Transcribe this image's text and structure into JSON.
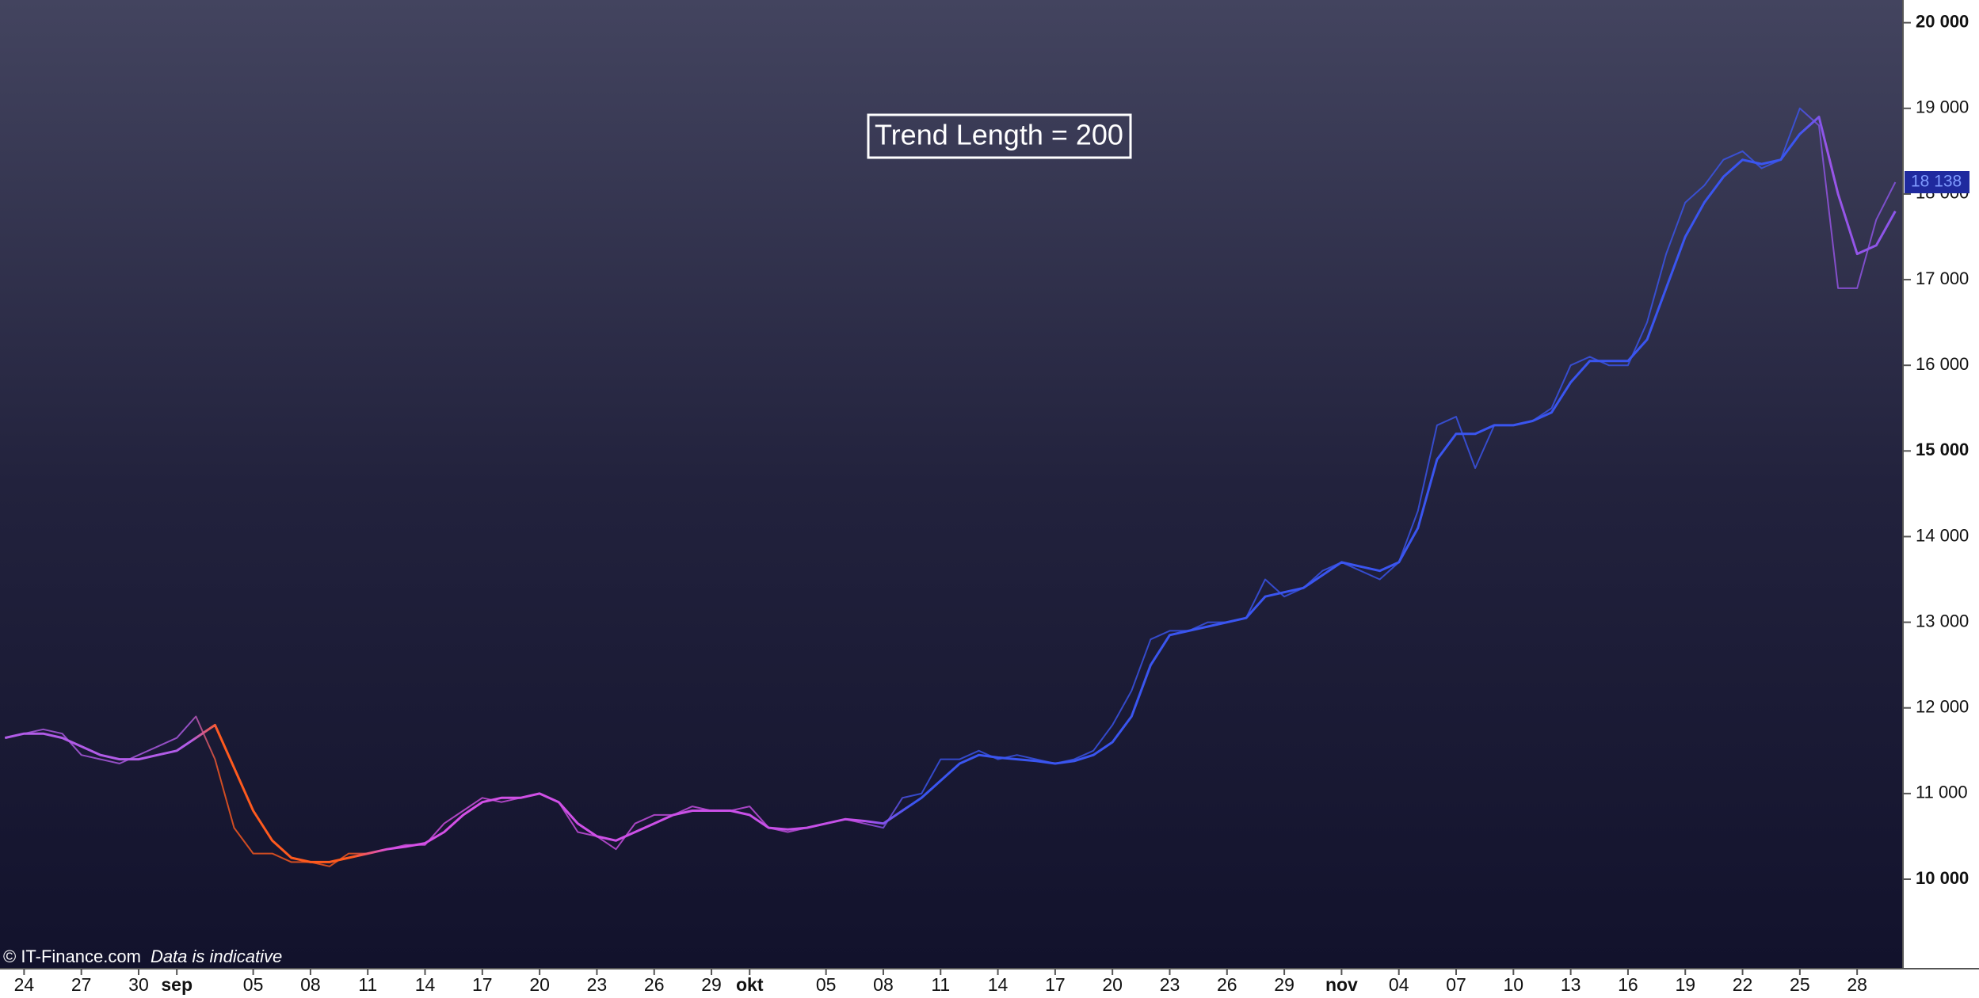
{
  "chart_data": {
    "type": "line",
    "annotation": "Trend Length = 200",
    "footer": {
      "source": "© IT-Finance.com",
      "note": "Data is indicative"
    },
    "last_value": {
      "value": 18138,
      "label": "18 138"
    },
    "xlim": [
      -1.26,
      98.4
    ],
    "ylim": [
      8955,
      20265
    ],
    "xticks": [
      {
        "value": 0,
        "label": "24"
      },
      {
        "value": 3,
        "label": "27"
      },
      {
        "value": 6,
        "label": "30"
      },
      {
        "value": 8,
        "label": "sep"
      },
      {
        "value": 12,
        "label": "05"
      },
      {
        "value": 15,
        "label": "08"
      },
      {
        "value": 18,
        "label": "11"
      },
      {
        "value": 21,
        "label": "14"
      },
      {
        "value": 24,
        "label": "17"
      },
      {
        "value": 27,
        "label": "20"
      },
      {
        "value": 30,
        "label": "23"
      },
      {
        "value": 33,
        "label": "26"
      },
      {
        "value": 36,
        "label": "29"
      },
      {
        "value": 38,
        "label": "okt"
      },
      {
        "value": 42,
        "label": "05"
      },
      {
        "value": 45,
        "label": "08"
      },
      {
        "value": 48,
        "label": "11"
      },
      {
        "value": 51,
        "label": "14"
      },
      {
        "value": 54,
        "label": "17"
      },
      {
        "value": 57,
        "label": "20"
      },
      {
        "value": 60,
        "label": "23"
      },
      {
        "value": 63,
        "label": "26"
      },
      {
        "value": 66,
        "label": "29"
      },
      {
        "value": 69,
        "label": "nov"
      },
      {
        "value": 72,
        "label": "04"
      },
      {
        "value": 75,
        "label": "07"
      },
      {
        "value": 78,
        "label": "10"
      },
      {
        "value": 81,
        "label": "13"
      },
      {
        "value": 84,
        "label": "16"
      },
      {
        "value": 87,
        "label": "19"
      },
      {
        "value": 90,
        "label": "22"
      },
      {
        "value": 93,
        "label": "25"
      },
      {
        "value": 96,
        "label": "28"
      }
    ],
    "yticks": [
      {
        "value": 10000,
        "label": "10 000"
      },
      {
        "value": 11000,
        "label": "11 000"
      },
      {
        "value": 12000,
        "label": "12 000"
      },
      {
        "value": 13000,
        "label": "13 000"
      },
      {
        "value": 14000,
        "label": "14 000"
      },
      {
        "value": 15000,
        "label": "15 000"
      },
      {
        "value": 16000,
        "label": "16 000"
      },
      {
        "value": 17000,
        "label": "17 000"
      },
      {
        "value": 18000,
        "label": "18 000"
      },
      {
        "value": 19000,
        "label": "19 000"
      },
      {
        "value": 20000,
        "label": "20 000"
      }
    ],
    "x": [
      -1,
      0,
      1,
      2,
      3,
      4,
      5,
      6,
      7,
      8,
      9,
      10,
      11,
      12,
      13,
      14,
      15,
      16,
      17,
      18,
      19,
      20,
      21,
      22,
      23,
      24,
      25,
      26,
      27,
      28,
      29,
      30,
      31,
      32,
      33,
      34,
      35,
      36,
      37,
      38,
      39,
      40,
      41,
      42,
      43,
      44,
      45,
      46,
      47,
      48,
      49,
      50,
      51,
      52,
      53,
      54,
      55,
      56,
      57,
      58,
      59,
      60,
      61,
      62,
      63,
      64,
      65,
      66,
      67,
      68,
      69,
      70,
      71,
      72,
      73,
      74,
      75,
      76,
      77,
      78,
      79,
      80,
      81,
      82,
      83,
      84,
      85,
      86,
      87,
      88,
      89,
      90,
      91,
      92,
      93,
      94,
      95,
      96,
      97,
      98
    ],
    "series": [
      {
        "values": [
          11650,
          11700,
          11750,
          11700,
          11450,
          11400,
          11350,
          11450,
          11550,
          11650,
          11900,
          11400,
          10600,
          10300,
          10300,
          10200,
          10200,
          10150,
          10300,
          10300,
          10350,
          10400,
          10400,
          10650,
          10800,
          10950,
          10900,
          10950,
          11000,
          10900,
          10550,
          10500,
          10350,
          10650,
          10750,
          10750,
          10850,
          10800,
          10800,
          10850,
          10600,
          10550,
          10600,
          10650,
          10700,
          10650,
          10600,
          10950,
          11000,
          11400,
          11400,
          11500,
          11400,
          11450,
          11400,
          11350,
          11400,
          11500,
          11800,
          12200,
          12800,
          12900,
          12900,
          13000,
          13000,
          13050,
          13500,
          13300,
          13400,
          13600,
          13700,
          13600,
          13500,
          13700,
          14300,
          15300,
          15400,
          14800,
          15300,
          15300,
          15350,
          15500,
          16000,
          16100,
          16000,
          16000,
          16500,
          17300,
          17900,
          18100,
          18400,
          18500,
          18300,
          18400,
          19000,
          18800,
          16900,
          16900,
          17700,
          18138
        ]
      },
      {
        "values": [
          11650,
          11700,
          11700,
          11650,
          11550,
          11450,
          11400,
          11400,
          11450,
          11500,
          11650,
          11800,
          11300,
          10800,
          10450,
          10250,
          10200,
          10200,
          10250,
          10300,
          10350,
          10380,
          10420,
          10550,
          10750,
          10900,
          10950,
          10950,
          11000,
          10900,
          10650,
          10500,
          10450,
          10550,
          10650,
          10750,
          10800,
          10800,
          10800,
          10750,
          10600,
          10580,
          10600,
          10650,
          10700,
          10680,
          10650,
          10800,
          10950,
          11150,
          11350,
          11450,
          11420,
          11400,
          11380,
          11350,
          11380,
          11450,
          11600,
          11900,
          12500,
          12850,
          12900,
          12950,
          13000,
          13050,
          13300,
          13350,
          13400,
          13550,
          13700,
          13650,
          13600,
          13700,
          14100,
          14900,
          15200,
          15200,
          15300,
          15300,
          15350,
          15450,
          15800,
          16050,
          16050,
          16050,
          16300,
          16900,
          17500,
          17900,
          18200,
          18400,
          18350,
          18400,
          18700,
          18900,
          18000,
          17300,
          17400,
          17800
        ]
      }
    ]
  }
}
